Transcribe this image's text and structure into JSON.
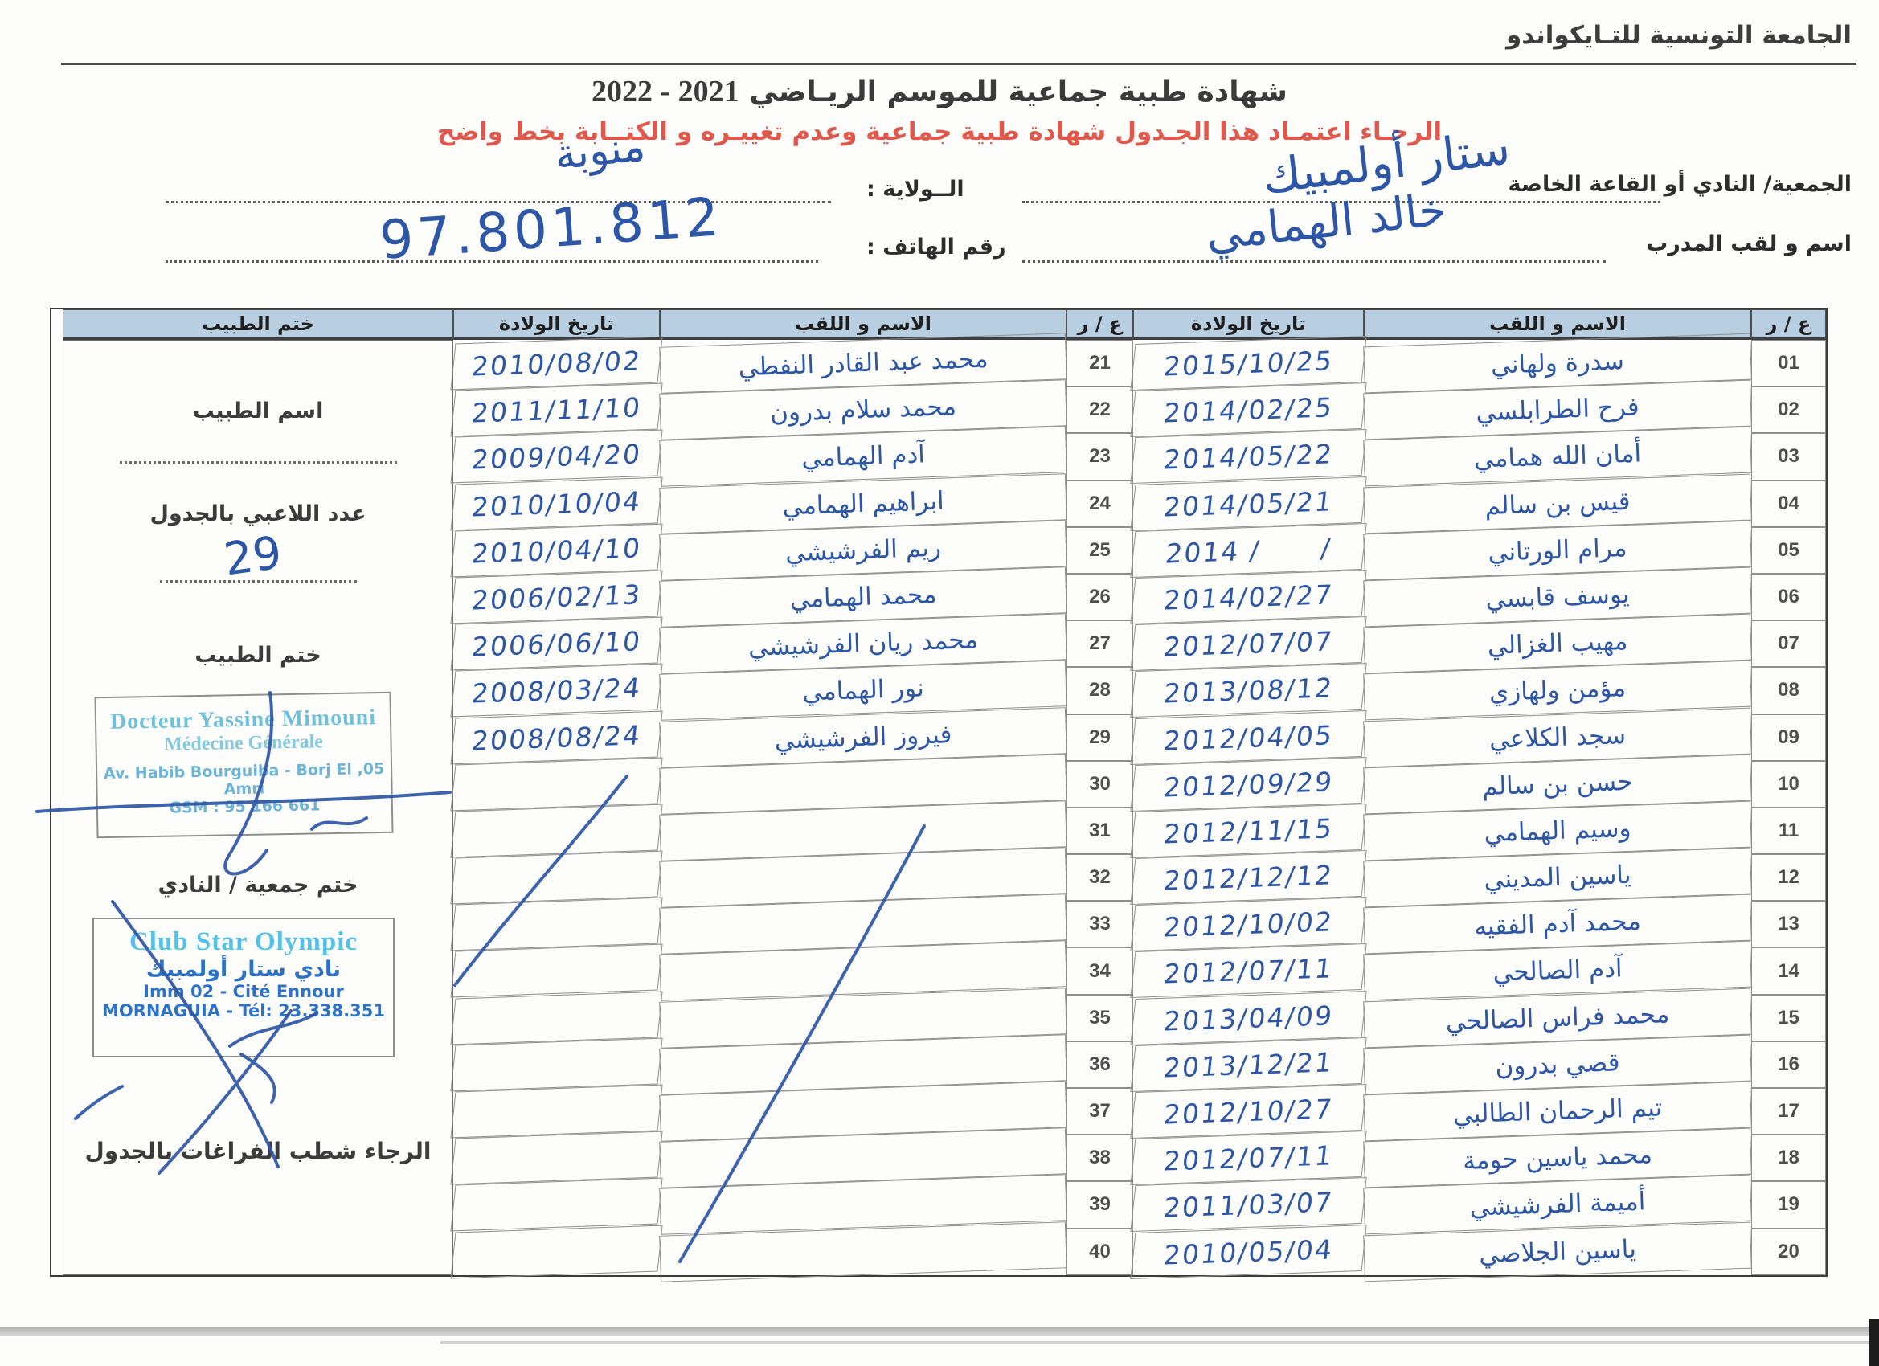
{
  "page": {
    "org_title": "الجامعة التونسية للتـايكواندو",
    "title_ar": "شهادة طبية جماعية  للموسم الريـاضي",
    "title_years": "2021 - 2022",
    "warning_red": "الرجـاء اعتمـاد هذا الجـدول  شهادة طبية جماعية وعدم تغييـره و الكتــابة بخط واضح"
  },
  "form": {
    "club_label": "الجمعية/ النادي أو القاعة الخاصة",
    "club_value": "ستار أولمبيك",
    "wilaya_label": "الــولاية :",
    "wilaya_value": "منوبة",
    "coach_label": "اسم و لقب المدرب",
    "coach_value": "خالد الهمامي",
    "phone_label": "رقم الهاتف  :",
    "phone_value": "97.801.812"
  },
  "table": {
    "headers": [
      "ع / ر",
      "الاسم و اللقب",
      "تاريخ الولادة",
      "ع / ر",
      "الاسم و اللقب",
      "تاريخ الولادة",
      "ختم الطبيب"
    ],
    "rows": [
      {
        "no1": "01",
        "name1": "سدرة ولهاني",
        "date1": "2015/10/25",
        "no2": "21",
        "name2": "محمد عبد القادر النفطي",
        "date2": "2010/08/02"
      },
      {
        "no1": "02",
        "name1": "فرح الطرابلسي",
        "date1": "2014/02/25",
        "no2": "22",
        "name2": "محمد سلام بدرون",
        "date2": "2011/11/10"
      },
      {
        "no1": "03",
        "name1": "أمان الله همامي",
        "date1": "2014/05/22",
        "no2": "23",
        "name2": "آدم الهمامي",
        "date2": "2009/04/20"
      },
      {
        "no1": "04",
        "name1": "قيس بن سالم",
        "date1": "2014/05/21",
        "no2": "24",
        "name2": "ابراهيم الهمامي",
        "date2": "2010/10/04"
      },
      {
        "no1": "05",
        "name1": "مرام الورتاني",
        "date1": "2014 /      /",
        "no2": "25",
        "name2": "ريم الفرشيشي",
        "date2": "2010/04/10"
      },
      {
        "no1": "06",
        "name1": "يوسف قابسي",
        "date1": "2014/02/27",
        "no2": "26",
        "name2": "محمد الهمامي",
        "date2": "2006/02/13"
      },
      {
        "no1": "07",
        "name1": "مهيب الغزالي",
        "date1": "2012/07/07",
        "no2": "27",
        "name2": "محمد ريان الفرشيشي",
        "date2": "2006/06/10"
      },
      {
        "no1": "08",
        "name1": "مؤمن ولهازي",
        "date1": "2013/08/12",
        "no2": "28",
        "name2": "نور الهمامي",
        "date2": "2008/03/24"
      },
      {
        "no1": "09",
        "name1": "سجد الكلاعي",
        "date1": "2012/04/05",
        "no2": "29",
        "name2": "فيروز الفرشيشي",
        "date2": "2008/08/24"
      },
      {
        "no1": "10",
        "name1": "حسن بن سالم",
        "date1": "2012/09/29",
        "no2": "30",
        "name2": "",
        "date2": ""
      },
      {
        "no1": "11",
        "name1": "وسيم الهمامي",
        "date1": "2012/11/15",
        "no2": "31",
        "name2": "",
        "date2": ""
      },
      {
        "no1": "12",
        "name1": "ياسين المديني",
        "date1": "2012/12/12",
        "no2": "32",
        "name2": "",
        "date2": ""
      },
      {
        "no1": "13",
        "name1": "محمد آدم الفقيه",
        "date1": "2012/10/02",
        "no2": "33",
        "name2": "",
        "date2": ""
      },
      {
        "no1": "14",
        "name1": "آدم الصالحي",
        "date1": "2012/07/11",
        "no2": "34",
        "name2": "",
        "date2": ""
      },
      {
        "no1": "15",
        "name1": "محمد فراس الصالحي",
        "date1": "2013/04/09",
        "no2": "35",
        "name2": "",
        "date2": ""
      },
      {
        "no1": "16",
        "name1": "قصي بدرون",
        "date1": "2013/12/21",
        "no2": "36",
        "name2": "",
        "date2": ""
      },
      {
        "no1": "17",
        "name1": "تيم الرحمان الطالبي",
        "date1": "2012/10/27",
        "no2": "37",
        "name2": "",
        "date2": ""
      },
      {
        "no1": "18",
        "name1": "محمد ياسين حومة",
        "date1": "2012/07/11",
        "no2": "38",
        "name2": "",
        "date2": ""
      },
      {
        "no1": "19",
        "name1": "أميمة الفرشيشي",
        "date1": "2011/03/07",
        "no2": "39",
        "name2": "",
        "date2": ""
      },
      {
        "no1": "20",
        "name1": "ياسين الجلاصي",
        "date1": "2010/05/04",
        "no2": "40",
        "name2": "",
        "date2": ""
      }
    ]
  },
  "stamp_column": {
    "doctor_name_label": "اسم الطبيب",
    "players_count_label": "عدد اللاعبي بالجدول",
    "players_count_value": "29",
    "doctor_stamp_label": "ختم الطبيب",
    "doctor_stamp": {
      "line1": "Docteur Yassine Mimouni",
      "line2": "Médecine Générale",
      "line3": "05, Av. Habib Bourguiba - Borj El Amri",
      "line4": "GSM : 95 166 661"
    },
    "club_stamp_label": "ختم جمعية / النادي",
    "club_stamp": {
      "line1": "Club Star Olympic",
      "line2": "نادي ستار أولمبيك",
      "line3": "Imm 02 - Cité Ennour",
      "line4": "MORNAGUIA - Tél: 23.338.351"
    },
    "footer_note": "الرجاء شطب  الفراغات بالجدول"
  },
  "colors": {
    "header_band": "#b7cfe0",
    "red_warning": "#e0584b",
    "ink_blue": "#2e56a6",
    "stamp_cyan": "#54c2e8",
    "stamp_blue": "#2e72c8"
  }
}
